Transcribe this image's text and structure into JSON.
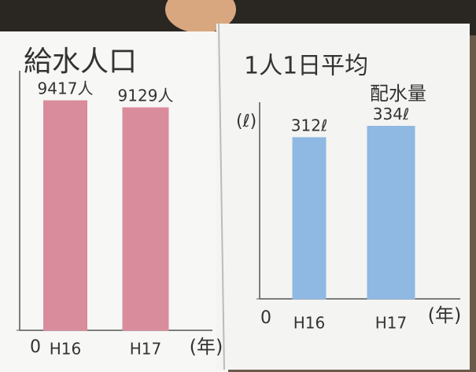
{
  "chart_data": [
    {
      "type": "bar",
      "title": "給水人口",
      "x_label": "(年)",
      "categories": [
        "H16",
        "H17"
      ],
      "values": [
        9417,
        9129
      ],
      "value_labels": [
        "9417人",
        "9129人"
      ],
      "color": "#d98c9c",
      "ylim": [
        0,
        10000
      ],
      "yticks": [
        0
      ]
    },
    {
      "type": "bar",
      "title": "1人1日平均",
      "subtitle": "配水量",
      "y_label": "(ℓ)",
      "x_label": "(年)",
      "categories": [
        "H16",
        "H17"
      ],
      "values": [
        312,
        334
      ],
      "value_labels": [
        "312ℓ",
        "334ℓ"
      ],
      "color": "#8fb9e3",
      "ylim": [
        0,
        350
      ],
      "yticks": [
        0
      ]
    }
  ]
}
